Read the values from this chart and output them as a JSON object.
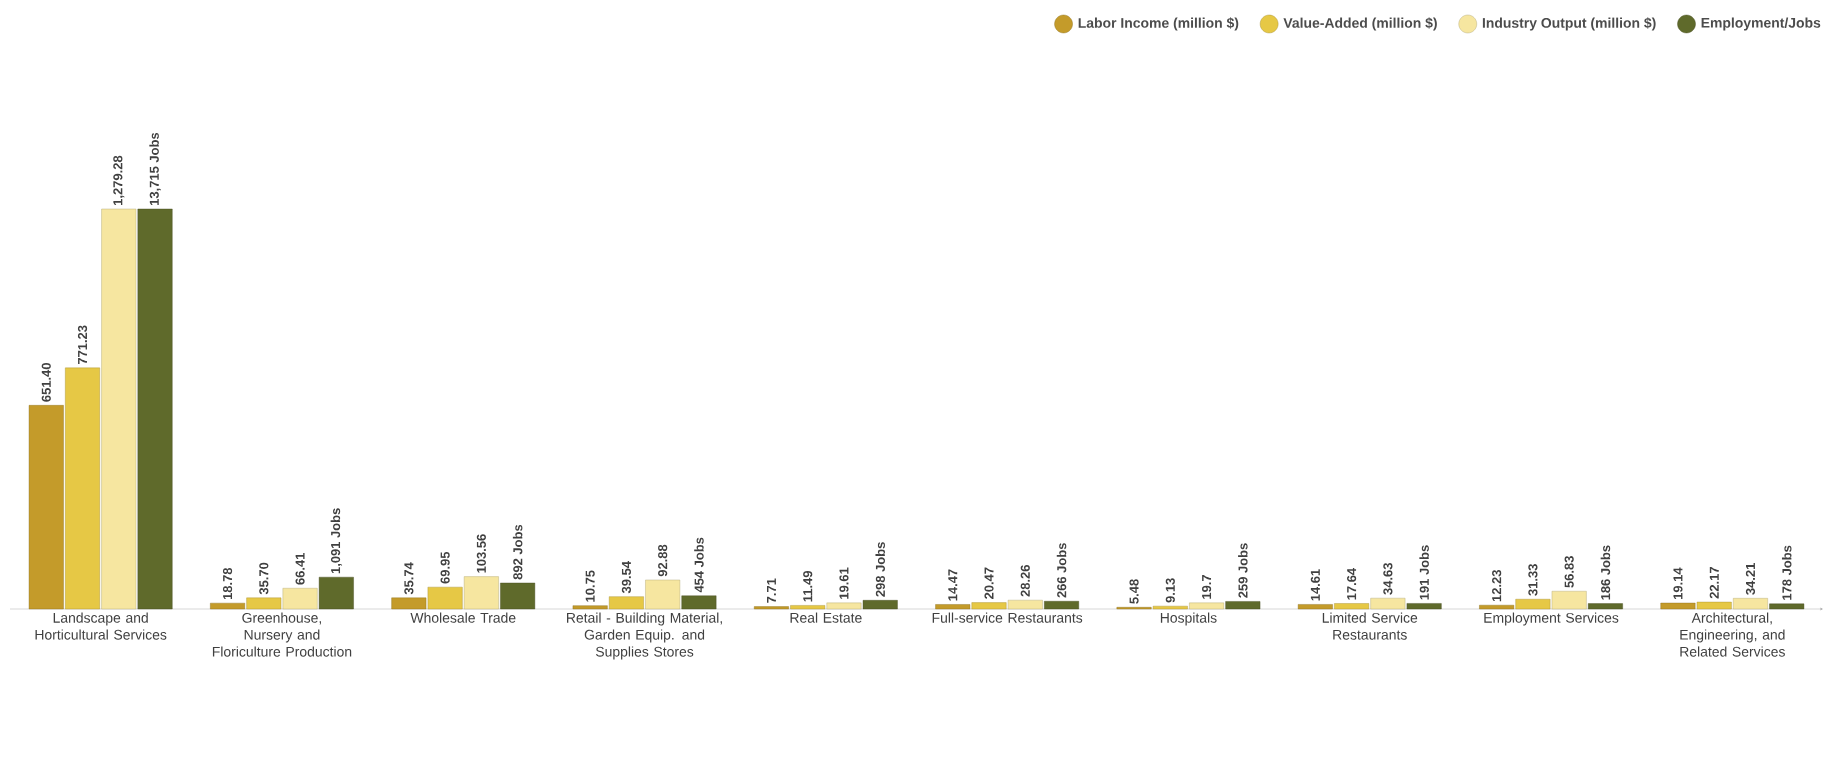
{
  "chart_data": {
    "type": "bar",
    "legend": "top right",
    "categories": [
      "Landscape and Horticultural Services",
      "Greenhouse, Nursery and Floriculture Production",
      "Wholesale Trade",
      "Retail - Building Material, Garden Equip. and Supplies Stores",
      "Real Estate",
      "Full-service Restaurants",
      "Hospitals",
      "Limited Service Restaurants",
      "Employment Services",
      "Architectural, Engineering, and Related Services"
    ],
    "series": [
      {
        "name": "Labor Income (million $)",
        "color": "#c49b2a",
        "values": [
          651.4,
          18.78,
          35.74,
          10.75,
          7.71,
          14.47,
          5.48,
          14.61,
          12.23,
          19.14
        ],
        "value_labels": [
          "651.40",
          "18.78",
          "35.74",
          "10.75",
          "7.71",
          "14.47",
          "5.48",
          "14.61",
          "12.23",
          "19.14"
        ]
      },
      {
        "name": "Value-Added (million $)",
        "color": "#e6c845",
        "values": [
          771.23,
          35.7,
          69.95,
          39.54,
          11.49,
          20.47,
          9.13,
          17.64,
          31.33,
          22.17
        ],
        "value_labels": [
          "771.23",
          "35.70",
          "69.95",
          "39.54",
          "11.49",
          "20.47",
          "9.13",
          "17.64",
          "31.33",
          "22.17"
        ]
      },
      {
        "name": "Industry Output (million $)",
        "color": "#f6e6a0",
        "values": [
          1279.28,
          66.41,
          103.56,
          92.88,
          19.61,
          28.26,
          19.7,
          34.63,
          56.83,
          34.21
        ],
        "value_labels": [
          "1,279.28",
          "66.41",
          "103.56",
          "92.88",
          "19.61",
          "28.26",
          "19.7",
          "34.63",
          "56.83",
          "34.21"
        ]
      },
      {
        "name": "Employment/Jobs",
        "color": "#5f6a2b",
        "axis": "y2",
        "values": [
          13715,
          1091,
          892,
          454,
          298,
          266,
          259,
          191,
          186,
          178
        ],
        "value_labels": [
          "13,715 Jobs",
          "1,091 Jobs",
          "892 Jobs",
          "454 Jobs",
          "298 Jobs",
          "266 Jobs",
          "259 Jobs",
          "191 Jobs",
          "186 Jobs",
          "178 Jobs"
        ]
      }
    ]
  }
}
